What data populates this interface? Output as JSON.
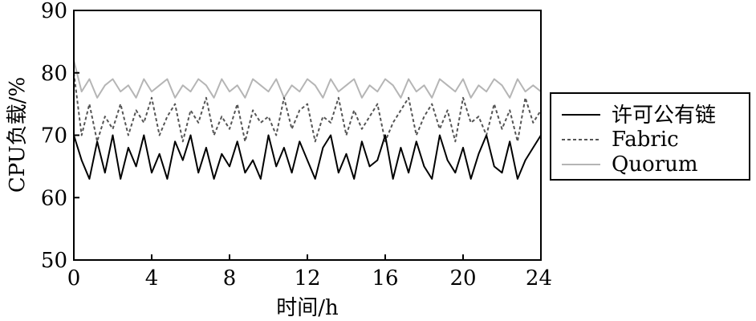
{
  "chart_data": {
    "type": "line",
    "title": "",
    "xlabel": "时间/h",
    "ylabel": "CPU负载/%",
    "xlim": [
      0,
      24
    ],
    "ylim": [
      50,
      90
    ],
    "xticks": [
      0,
      4,
      8,
      12,
      16,
      20,
      24
    ],
    "xtick_labels": [
      "0",
      "4",
      "8",
      "12",
      "16",
      "20",
      "24"
    ],
    "yticks": [
      50,
      60,
      70,
      80,
      90
    ],
    "ytick_labels": [
      "50",
      "60",
      "70",
      "80",
      "90"
    ],
    "grid": false,
    "legend_position": "right",
    "x": [
      0.0,
      0.4,
      0.8,
      1.2,
      1.6,
      2.0,
      2.4,
      2.8,
      3.2,
      3.6,
      4.0,
      4.4,
      4.8,
      5.2,
      5.6,
      6.0,
      6.4,
      6.8,
      7.2,
      7.6,
      8.0,
      8.4,
      8.8,
      9.2,
      9.6,
      10.0,
      10.4,
      10.8,
      11.2,
      11.6,
      12.0,
      12.4,
      12.8,
      13.2,
      13.6,
      14.0,
      14.4,
      14.8,
      15.2,
      15.6,
      16.0,
      16.4,
      16.8,
      17.2,
      17.6,
      18.0,
      18.4,
      18.8,
      19.2,
      19.6,
      20.0,
      20.4,
      20.8,
      21.2,
      21.6,
      22.0,
      22.4,
      22.8,
      23.2,
      23.6,
      24.0
    ],
    "series": [
      {
        "name": "许可公有链",
        "color": "#000000",
        "dash": "solid",
        "values": [
          70,
          66,
          63,
          69,
          64,
          70,
          63,
          68,
          65,
          70,
          64,
          67,
          63,
          69,
          66,
          70,
          64,
          68,
          63,
          67,
          65,
          69,
          64,
          66,
          63,
          70,
          65,
          68,
          64,
          69,
          66,
          63,
          68,
          70,
          64,
          67,
          63,
          69,
          65,
          66,
          70,
          63,
          68,
          64,
          69,
          65,
          63,
          70,
          66,
          64,
          68,
          63,
          67,
          70,
          65,
          64,
          69,
          63,
          66,
          68,
          70
        ]
      },
      {
        "name": "Fabric",
        "color": "#555555",
        "dash": "dashed",
        "values": [
          80,
          70,
          75,
          69,
          73,
          71,
          75,
          70,
          74,
          72,
          76,
          70,
          73,
          75,
          69,
          74,
          72,
          76,
          70,
          73,
          71,
          75,
          69,
          74,
          72,
          73,
          70,
          76,
          71,
          74,
          75,
          69,
          73,
          72,
          76,
          70,
          74,
          71,
          73,
          75,
          69,
          72,
          74,
          76,
          70,
          73,
          75,
          71,
          74,
          69,
          76,
          72,
          73,
          70,
          75,
          71,
          74,
          69,
          76,
          72,
          74
        ]
      },
      {
        "name": "Quorum",
        "color": "#b5b5b5",
        "dash": "solid",
        "values": [
          82,
          77,
          79,
          76,
          78,
          79,
          77,
          78,
          76,
          79,
          77,
          78,
          79,
          76,
          78,
          77,
          79,
          78,
          76,
          79,
          77,
          78,
          76,
          79,
          78,
          77,
          79,
          76,
          78,
          77,
          79,
          78,
          76,
          79,
          77,
          78,
          79,
          76,
          78,
          77,
          79,
          78,
          76,
          79,
          77,
          78,
          76,
          79,
          78,
          77,
          79,
          76,
          78,
          77,
          79,
          78,
          76,
          79,
          77,
          78,
          77
        ]
      }
    ]
  }
}
